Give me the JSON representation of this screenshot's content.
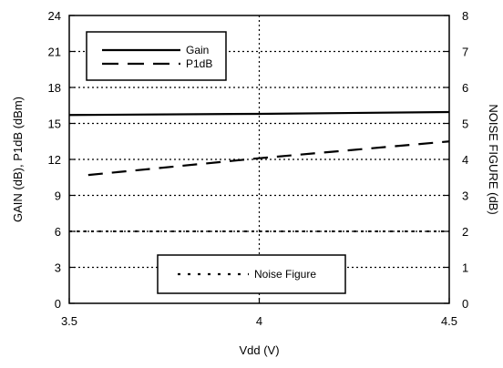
{
  "chart_data": {
    "type": "line",
    "xlabel": "Vdd (V)",
    "ylabel": "GAIN (dB), P1dB (dBm)",
    "y2label": "NOISE FIGURE (dB)",
    "xlim": [
      3.5,
      4.5
    ],
    "ylim": [
      0,
      24
    ],
    "y2lim": [
      0,
      8
    ],
    "x_ticks": [
      "3.5",
      "4",
      "4.5"
    ],
    "y_ticks": [
      "0",
      "3",
      "6",
      "9",
      "12",
      "15",
      "18",
      "21",
      "24"
    ],
    "y2_ticks": [
      "0",
      "1",
      "2",
      "3",
      "4",
      "5",
      "6",
      "7",
      "8"
    ],
    "grid": true,
    "series": [
      {
        "name": "Gain",
        "axis": "left",
        "style": "solid",
        "x": [
          3.5,
          4.0,
          4.5
        ],
        "values": [
          15.7,
          15.8,
          15.95
        ]
      },
      {
        "name": "P1dB",
        "axis": "left",
        "style": "dashed",
        "x": [
          3.55,
          4.0,
          4.5
        ],
        "values": [
          10.7,
          12.1,
          13.5
        ]
      },
      {
        "name": "Noise Figure",
        "axis": "right",
        "style": "dotted",
        "x": [
          3.5,
          4.0,
          4.5
        ],
        "values": [
          2.0,
          2.0,
          2.0
        ]
      }
    ],
    "legends": [
      {
        "placement": "top-left",
        "entries": [
          "Gain",
          "P1dB"
        ]
      },
      {
        "placement": "bottom-center",
        "entries": [
          "Noise Figure"
        ]
      }
    ]
  }
}
